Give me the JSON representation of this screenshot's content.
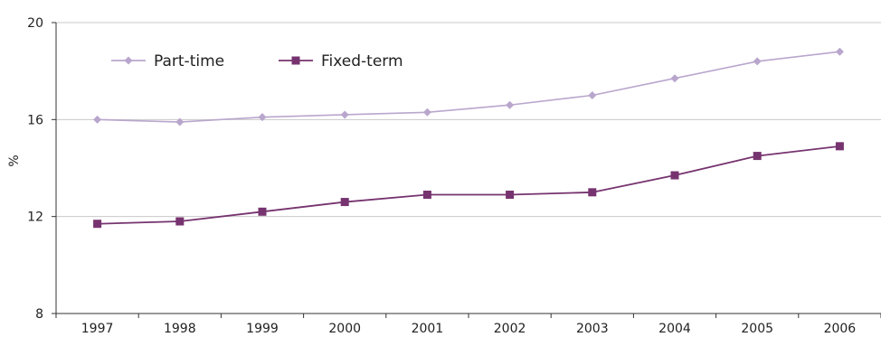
{
  "chart_data": {
    "type": "line",
    "title": "",
    "xlabel": "",
    "ylabel": "%",
    "categories": [
      "1997",
      "1998",
      "1999",
      "2000",
      "2001",
      "2002",
      "2003",
      "2004",
      "2005",
      "2006"
    ],
    "ylim": [
      8,
      20
    ],
    "yticks": [
      "8",
      "12",
      "16",
      "20"
    ],
    "grid": "horizontal",
    "legend_position": "top-left",
    "series": [
      {
        "name": "Part-time",
        "color": "#b9a6cd",
        "marker": "diamond",
        "values": [
          16.0,
          15.9,
          16.1,
          16.2,
          16.3,
          16.6,
          17.0,
          17.7,
          18.4,
          18.8
        ]
      },
      {
        "name": "Fixed-term",
        "color": "#76336f",
        "marker": "square",
        "values": [
          11.7,
          11.8,
          12.2,
          12.6,
          12.9,
          12.9,
          13.0,
          13.7,
          14.5,
          14.9
        ]
      }
    ]
  }
}
